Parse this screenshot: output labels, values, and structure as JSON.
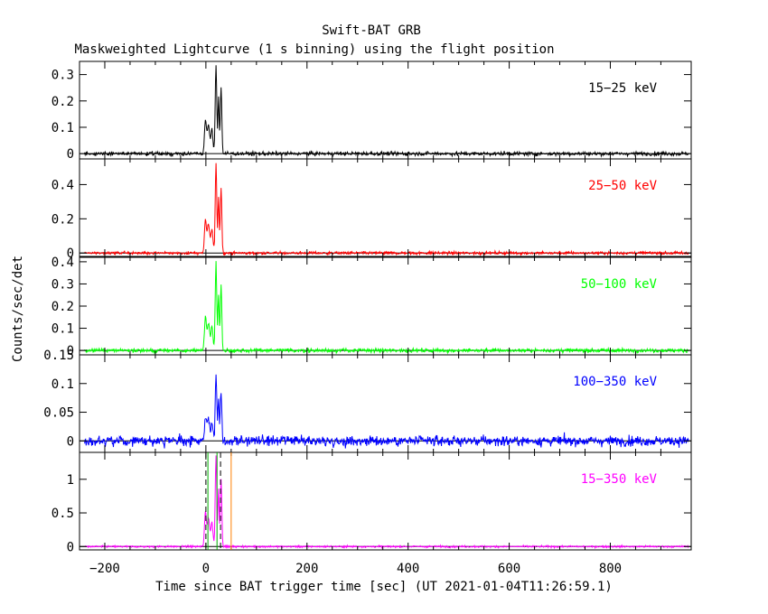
{
  "title": "Swift-BAT GRB",
  "subtitle": "Maskweighted Lightcurve (1 s binning) using the flight position",
  "xlabel": "Time since BAT trigger time [sec] (UT 2021-01-04T11:26:59.1)",
  "ylabel": "Counts/sec/det",
  "chart_data": {
    "type": "line",
    "x_range": [
      -250,
      960
    ],
    "x_ticks": [
      -200,
      0,
      200,
      400,
      600,
      800
    ],
    "x_tick_labels": [
      "−200",
      "0",
      "200",
      "400",
      "600",
      "800"
    ],
    "data_span": [
      -240,
      955
    ],
    "burst_peaks": [
      {
        "t": -1,
        "w": 1.8,
        "a": 0.35
      },
      {
        "t": 5,
        "w": 2.5,
        "a": 0.3
      },
      {
        "t": 12,
        "w": 2,
        "a": 0.25
      },
      {
        "t": 20,
        "w": 1.5,
        "a": 0.95
      },
      {
        "t": 25,
        "w": 1.2,
        "a": 0.6
      },
      {
        "t": 30,
        "w": 1.5,
        "a": 0.7
      }
    ],
    "panels": [
      {
        "name": "15-25 keV",
        "label": "15−25 keV",
        "color": "#000000",
        "ylim": [
          -0.02,
          0.35
        ],
        "yticks": [
          0,
          0.1,
          0.2,
          0.3
        ],
        "ytick_labels": [
          "0",
          "0.1",
          "0.2",
          "0.3"
        ],
        "peak": 0.34,
        "noise": 0.005
      },
      {
        "name": "25-50 keV",
        "label": "25−50 keV",
        "color": "#ff0000",
        "ylim": [
          -0.02,
          0.55
        ],
        "yticks": [
          0,
          0.2,
          0.4
        ],
        "ytick_labels": [
          "0",
          "0.2",
          "0.4"
        ],
        "peak": 0.52,
        "noise": 0.006
      },
      {
        "name": "50-100 keV",
        "label": "50−100 keV",
        "color": "#00ff00",
        "ylim": [
          -0.02,
          0.42
        ],
        "yticks": [
          0,
          0.1,
          0.2,
          0.3,
          0.4
        ],
        "ytick_labels": [
          "0",
          "0.1",
          "0.2",
          "0.3",
          "0.4"
        ],
        "peak": 0.4,
        "noise": 0.006
      },
      {
        "name": "100-350 keV",
        "label": "100−350 keV",
        "color": "#0000ff",
        "ylim": [
          -0.02,
          0.15
        ],
        "yticks": [
          0,
          0.05,
          0.1,
          0.15
        ],
        "ytick_labels": [
          "0",
          "0.05",
          "0.1",
          "0.15"
        ],
        "peak": 0.12,
        "noise": 0.006
      },
      {
        "name": "15-350 keV",
        "label": "15−350 keV",
        "color": "#ff00ff",
        "ylim": [
          -0.05,
          1.4
        ],
        "yticks": [
          0,
          0.5,
          1
        ],
        "ytick_labels": [
          "0",
          "0.5",
          "1"
        ],
        "peak": 1.35,
        "noise": 0.01
      }
    ],
    "markers": [
      {
        "kind": "dashed",
        "t": 0,
        "color": "#000000"
      },
      {
        "kind": "dashed",
        "t": 29,
        "color": "#000000"
      },
      {
        "kind": "solid",
        "t": 4,
        "color": "#00aa00"
      },
      {
        "kind": "solid",
        "t": 22,
        "color": "#00aa00"
      },
      {
        "kind": "solid",
        "t": 50,
        "color": "#ff7f00"
      }
    ]
  }
}
